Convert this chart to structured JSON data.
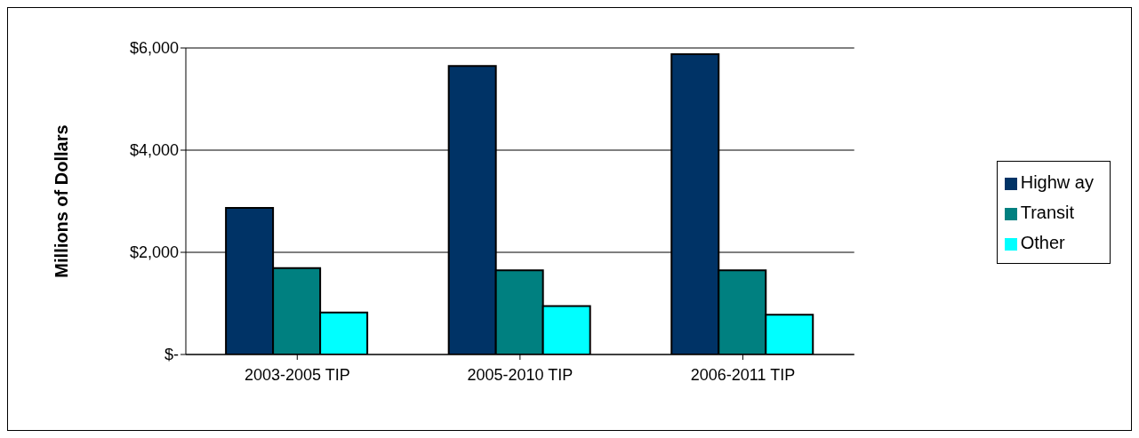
{
  "chart_data": {
    "type": "bar",
    "ylabel": "Millions of Dollars",
    "categories": [
      "2003-2005 TIP",
      "2005-2010 TIP",
      "2006-2011 TIP"
    ],
    "series": [
      {
        "name": "Highw ay",
        "color": "#003366",
        "values": [
          2870,
          5650,
          5880
        ]
      },
      {
        "name": "Transit",
        "color": "#008080",
        "values": [
          1690,
          1650,
          1650
        ]
      },
      {
        "name": "Other",
        "color": "#00ffff",
        "values": [
          820,
          950,
          780
        ]
      }
    ],
    "ylim": [
      0,
      6000
    ],
    "yticks": [
      {
        "value": 0,
        "label": "$-"
      },
      {
        "value": 2000,
        "label": "$2,000"
      },
      {
        "value": 4000,
        "label": "$4,000"
      },
      {
        "value": 6000,
        "label": "$6,000"
      }
    ],
    "grid": "y",
    "legend": "right"
  }
}
